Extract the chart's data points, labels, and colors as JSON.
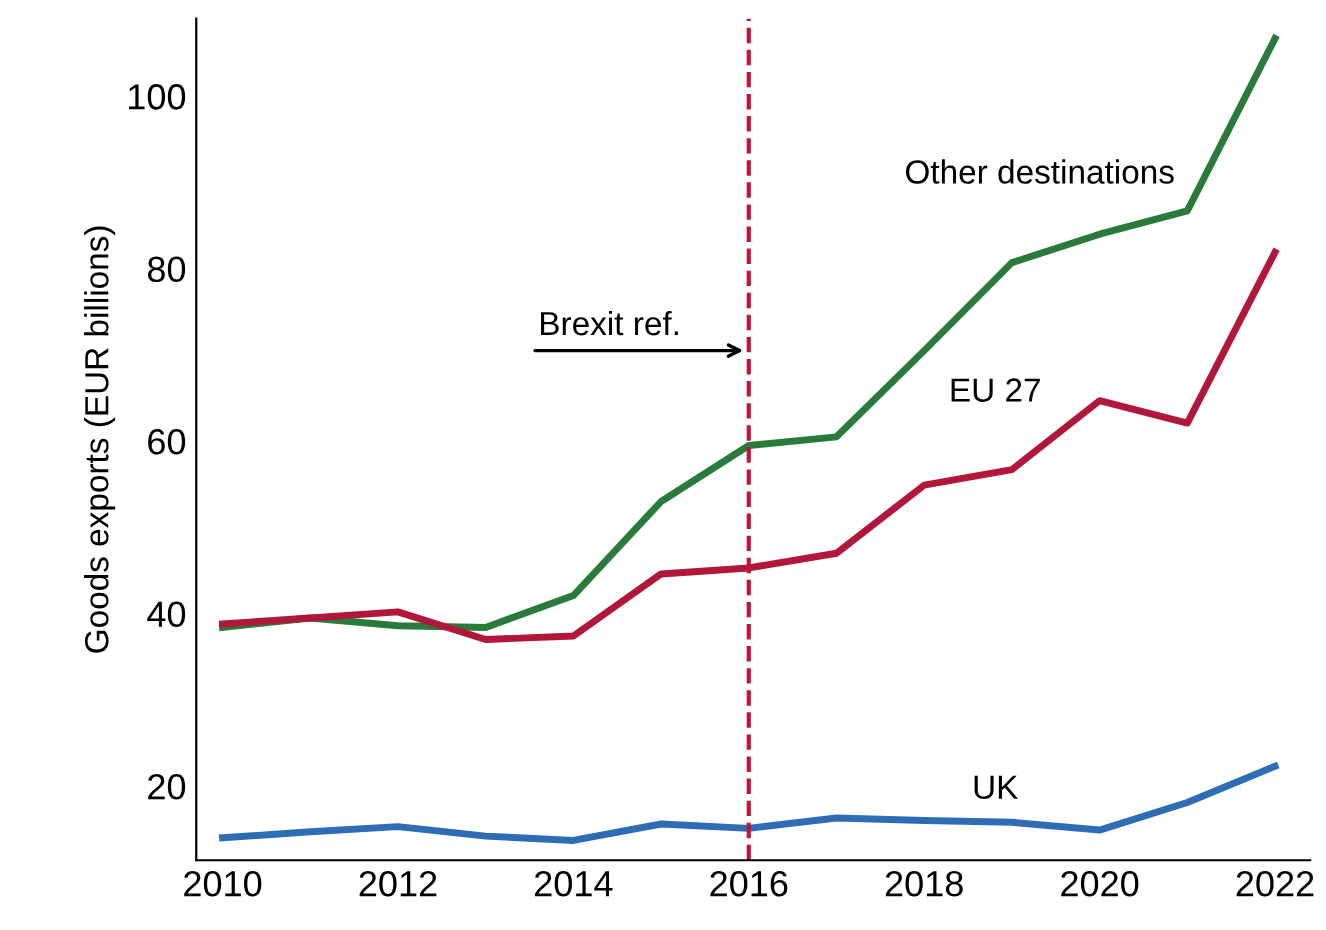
{
  "chart_data": {
    "type": "line",
    "ylabel": "Goods exports (EUR billions)",
    "x": [
      2010,
      2011,
      2012,
      2013,
      2014,
      2015,
      2016,
      2017,
      2018,
      2019,
      2020,
      2021,
      2022
    ],
    "series": [
      {
        "name": "Other destinations",
        "color": "#2a7a3b",
        "values": [
          38.4,
          39.5,
          38.6,
          38.4,
          42.1,
          53,
          59.5,
          60.5,
          70.5,
          80.7,
          84,
          86.7,
          106.7
        ]
      },
      {
        "name": "EU 27",
        "color": "#b0173a",
        "values": [
          38.8,
          39.5,
          40.2,
          37,
          37.4,
          44.6,
          45.3,
          47,
          54.9,
          56.7,
          64.7,
          62.1,
          81.9
        ]
      },
      {
        "name": "UK",
        "color": "#2e6db4",
        "values": [
          14,
          14.7,
          15.3,
          14.2,
          13.7,
          15.6,
          15.1,
          16.3,
          16,
          15.8,
          14.9,
          18.1,
          22.3
        ]
      }
    ],
    "xlim": [
      2009.7,
      2022.4
    ],
    "ylim": [
      11.4,
      109
    ],
    "xticks": [
      2010,
      2012,
      2014,
      2016,
      2018,
      2020,
      2022
    ],
    "yticks": [
      20,
      40,
      60,
      80,
      100
    ],
    "ref_lines": [
      {
        "axis": "x",
        "value": 2016,
        "color": "#c0143c",
        "line_style": "dashed"
      }
    ],
    "annotations": [
      {
        "text": "Brexit ref.",
        "x": 2016,
        "y": 70.5
      }
    ],
    "grid": false,
    "marker": "none",
    "line_style": "solid"
  }
}
